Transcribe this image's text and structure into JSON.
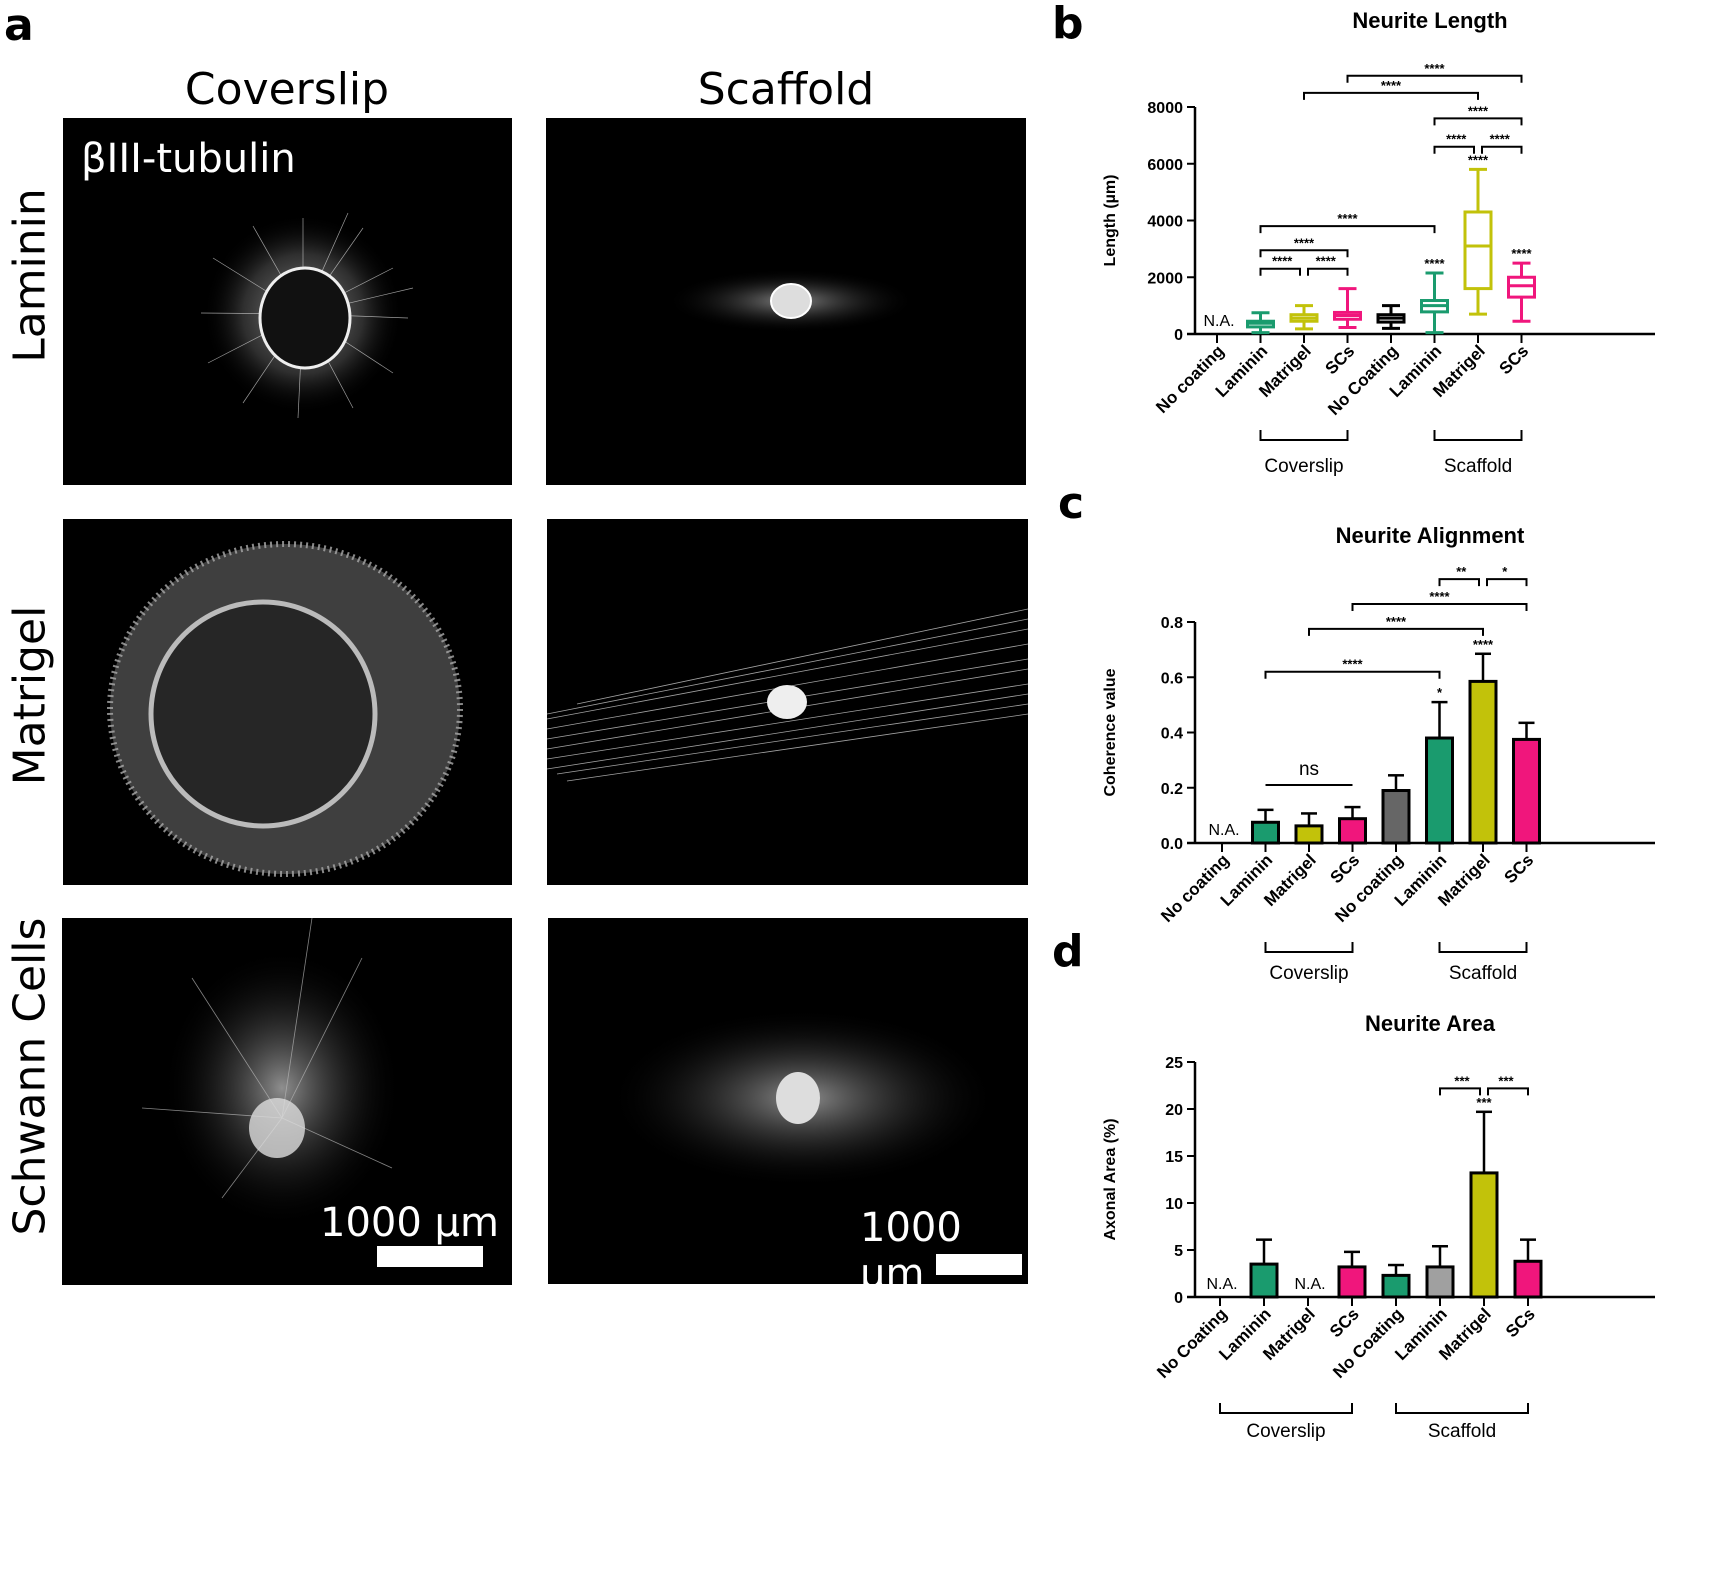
{
  "figure": {
    "panel_letters": {
      "a": "a",
      "b": "b",
      "c": "c",
      "d": "d"
    },
    "panel_a": {
      "column_headers": [
        "Coverslip",
        "Scaffold"
      ],
      "row_labels": [
        "Laminin",
        "Matrigel",
        "Schwann Cells"
      ],
      "stain_label": "βIII-tubulin",
      "scale_bar_label": "1000 µm"
    }
  },
  "chart_data": [
    {
      "id": "b",
      "type": "box",
      "title": "Neurite Length",
      "xlabel": "",
      "ylabel": "Length (µm)",
      "ylim": [
        0,
        8000
      ],
      "yticks": [
        0,
        2000,
        4000,
        6000,
        8000
      ],
      "categories": [
        "No coating",
        "Laminin",
        "Matrigel",
        "SCs",
        "No Coating",
        "Laminin",
        "Matrigel",
        "SCs"
      ],
      "groups": [
        {
          "label": "Coverslip",
          "from": 1,
          "to": 3
        },
        {
          "label": "Scaffold",
          "from": 5,
          "to": 7
        }
      ],
      "colors": [
        "#000000",
        "#1a9b6e",
        "#c2c20a",
        "#f0167c",
        "#000000",
        "#1a9b6e",
        "#c2c20a",
        "#f0167c"
      ],
      "na_label": "N.A.",
      "series": [
        {
          "name": "No coating (Coverslip)",
          "na": true
        },
        {
          "name": "Laminin (Coverslip)",
          "min": 50,
          "q1": 250,
          "median": 380,
          "q3": 450,
          "max": 750
        },
        {
          "name": "Matrigel (Coverslip)",
          "min": 180,
          "q1": 450,
          "median": 560,
          "q3": 680,
          "max": 1000
        },
        {
          "name": "SCs (Coverslip)",
          "min": 230,
          "q1": 520,
          "median": 650,
          "q3": 760,
          "max": 1600
        },
        {
          "name": "No Coating (Scaffold)",
          "min": 200,
          "q1": 420,
          "median": 560,
          "q3": 680,
          "max": 1000
        },
        {
          "name": "Laminin (Scaffold)",
          "min": 50,
          "q1": 780,
          "median": 1000,
          "q3": 1180,
          "max": 2150
        },
        {
          "name": "Matrigel (Scaffold)",
          "min": 700,
          "q1": 1600,
          "median": 3100,
          "q3": 4300,
          "max": 5800
        },
        {
          "name": "SCs (Scaffold)",
          "min": 450,
          "q1": 1300,
          "median": 1700,
          "q3": 2000,
          "max": 2500
        }
      ],
      "point_annotations": [
        {
          "index": 5,
          "label": "****"
        },
        {
          "index": 6,
          "label": "****"
        },
        {
          "index": 7,
          "label": "****"
        }
      ],
      "comparisons": [
        {
          "from": 1,
          "to": 2,
          "label": "****",
          "y": 2300
        },
        {
          "from": 2,
          "to": 3,
          "label": "****",
          "y": 2300
        },
        {
          "from": 1,
          "to": 3,
          "label": "****",
          "y": 2950
        },
        {
          "from": 1,
          "to": 5,
          "label": "****",
          "y": 3800
        },
        {
          "from": 5,
          "to": 6,
          "label": "****",
          "y": 6600
        },
        {
          "from": 6,
          "to": 7,
          "label": "****",
          "y": 6600
        },
        {
          "from": 5,
          "to": 7,
          "label": "****",
          "y": 7600
        },
        {
          "from": 2,
          "to": 6,
          "label": "****",
          "y": 8500
        },
        {
          "from": 3,
          "to": 7,
          "label": "****",
          "y": 9100
        }
      ]
    },
    {
      "id": "c",
      "type": "bar",
      "title": "Neurite Alignment",
      "xlabel": "",
      "ylabel": "Coherence value",
      "ylim": [
        0,
        0.8
      ],
      "yticks": [
        0.0,
        0.2,
        0.4,
        0.6,
        0.8
      ],
      "ytick_labels": [
        "0.0",
        "0.2",
        "0.4",
        "0.6",
        "0.8"
      ],
      "categories": [
        "No coating",
        "Laminin",
        "Matrigel",
        "SCs",
        "No coating",
        "Laminin",
        "Matrigel",
        "SCs"
      ],
      "groups": [
        {
          "label": "Coverslip",
          "from": 1,
          "to": 3
        },
        {
          "label": "Scaffold",
          "from": 5,
          "to": 7
        }
      ],
      "colors": [
        "#ffffff",
        "#1a9b6e",
        "#c2c20a",
        "#f0167c",
        "#666666",
        "#1a9b6e",
        "#c2c20a",
        "#f0167c"
      ],
      "na_label": "N.A.",
      "values": [
        null,
        0.075,
        0.062,
        0.088,
        0.19,
        0.38,
        0.585,
        0.375
      ],
      "errors": [
        null,
        0.045,
        0.045,
        0.042,
        0.055,
        0.13,
        0.1,
        0.06
      ],
      "point_annotations": [
        {
          "index": 5,
          "label": "*"
        },
        {
          "index": 6,
          "label": "****"
        }
      ],
      "comparisons": [
        {
          "from": 1,
          "to": 3,
          "label": "ns",
          "y": 0.21,
          "plain": true
        },
        {
          "from": 1,
          "to": 5,
          "label": "****",
          "y": 0.62
        },
        {
          "from": 2,
          "to": 6,
          "label": "****",
          "y": 0.775
        },
        {
          "from": 3,
          "to": 7,
          "label": "****",
          "y": 0.865
        },
        {
          "from": 5,
          "to": 6,
          "label": "**",
          "y": 0.955
        },
        {
          "from": 6,
          "to": 7,
          "label": "*",
          "y": 0.955
        }
      ]
    },
    {
      "id": "d",
      "type": "bar",
      "title": "Neurite Area",
      "xlabel": "",
      "ylabel": "Axonal Area (%)",
      "ylim": [
        0,
        25
      ],
      "yticks": [
        0,
        5,
        10,
        15,
        20,
        25
      ],
      "ytick_labels": [
        "0",
        "5",
        "10",
        "15",
        "20",
        "25"
      ],
      "categories": [
        "No Coating",
        "Laminin",
        "Matrigel",
        "SCs",
        "No Coating",
        "Laminin",
        "Matrigel",
        "SCs"
      ],
      "groups": [
        {
          "label": "Coverslip",
          "from": 0,
          "to": 3
        },
        {
          "label": "Scaffold",
          "from": 4,
          "to": 7
        }
      ],
      "colors": [
        "#ffffff",
        "#1a9b6e",
        "#ffffff",
        "#f0167c",
        "#1a9b6e",
        "#a0a0a0",
        "#c2c20a",
        "#f0167c"
      ],
      "na_label": "N.A.",
      "values": [
        null,
        3.5,
        null,
        3.2,
        2.3,
        3.2,
        13.2,
        3.8
      ],
      "errors": [
        null,
        2.6,
        null,
        1.6,
        1.1,
        2.2,
        6.5,
        2.3
      ],
      "point_annotations": [
        {
          "index": 6,
          "label": "***"
        }
      ],
      "comparisons": [
        {
          "from": 5,
          "to": 6,
          "label": "***",
          "y": 22.2
        },
        {
          "from": 6,
          "to": 7,
          "label": "***",
          "y": 22.2
        }
      ]
    }
  ]
}
